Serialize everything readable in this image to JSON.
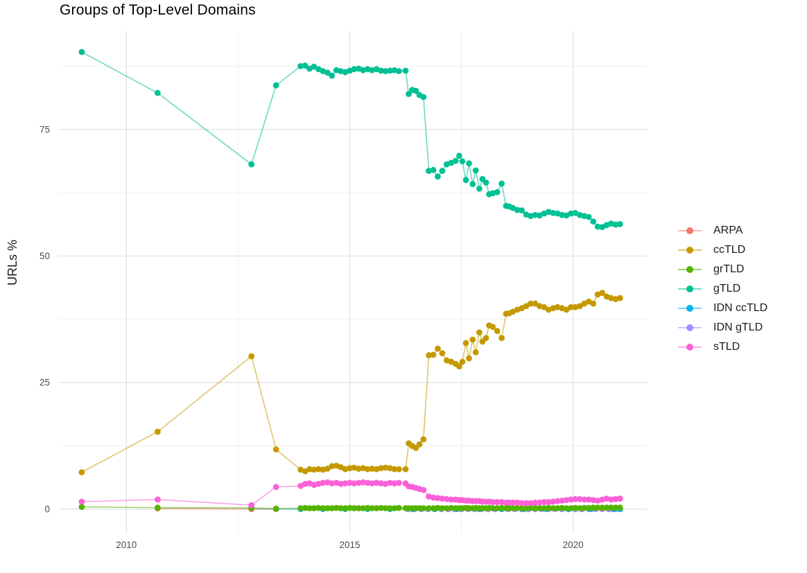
{
  "chart_data": {
    "type": "line",
    "title": "Groups of Top-Level Domains",
    "x_axis": {
      "label": "",
      "ticks": [
        "2010",
        "2015",
        "2020"
      ],
      "tick_values": [
        2010,
        2015,
        2020
      ],
      "minor_tick_values": [
        2012.5,
        2017.5
      ],
      "domain": [
        2008.49,
        2021.65
      ]
    },
    "y_axis": {
      "label": "URLs %",
      "ticks": [
        "0",
        "25",
        "50",
        "75"
      ],
      "tick_values": [
        0,
        25,
        50,
        75
      ],
      "minor_tick_values": [
        12.5,
        37.5,
        62.5,
        87.5
      ],
      "domain": [
        -4.8,
        94.4
      ]
    },
    "grid": true,
    "grid_color_major": "#e3e3e3",
    "grid_color_minor": "#f0f0f0",
    "tick_text_color": "#4d4d4d",
    "legend": {
      "position": "right"
    },
    "shared_x": [
      2009.0,
      2010.7,
      2012.8,
      2013.35,
      2013.9,
      2014.0,
      2014.1,
      2014.2,
      2014.3,
      2014.4,
      2014.5,
      2014.6,
      2014.7,
      2014.8,
      2014.9,
      2015.0,
      2015.1,
      2015.2,
      2015.3,
      2015.4,
      2015.5,
      2015.6,
      2015.7,
      2015.8,
      2015.9,
      2016.0,
      2016.1,
      2016.25,
      2016.32,
      2016.4,
      2016.48,
      2016.56,
      2016.65,
      2016.77,
      2016.87,
      2016.97,
      2017.07,
      2017.17,
      2017.27,
      2017.37,
      2017.45,
      2017.52,
      2017.6,
      2017.67,
      2017.75,
      2017.82,
      2017.9,
      2017.97,
      2018.05,
      2018.12,
      2018.2,
      2018.3,
      2018.4,
      2018.5,
      2018.57,
      2018.65,
      2018.75,
      2018.85,
      2018.95,
      2019.05,
      2019.15,
      2019.25,
      2019.35,
      2019.45,
      2019.55,
      2019.65,
      2019.75,
      2019.85,
      2019.95,
      2020.05,
      2020.15,
      2020.25,
      2020.35,
      2020.45,
      2020.55,
      2020.65,
      2020.75,
      2020.85,
      2020.95,
      2021.05
    ],
    "series": [
      {
        "name": "ARPA",
        "color": "#F8766D",
        "x": [
          2010.7,
          2012.8,
          2013.35
        ],
        "y": [
          0.15,
          0.05,
          0.05
        ]
      },
      {
        "name": "ccTLD",
        "color": "#C49A00",
        "x": "shared",
        "y": [
          7.3,
          15.3,
          30.2,
          11.8,
          7.8,
          7.5,
          7.9,
          7.8,
          7.9,
          7.8,
          8.0,
          8.5,
          8.6,
          8.3,
          7.9,
          8.1,
          8.2,
          8.0,
          8.1,
          7.9,
          8.0,
          7.9,
          8.1,
          8.2,
          8.1,
          7.9,
          7.9,
          7.9,
          13.0,
          12.5,
          12.1,
          12.8,
          13.8,
          30.4,
          30.5,
          31.7,
          30.8,
          29.4,
          29.1,
          28.7,
          28.2,
          29.1,
          32.8,
          29.8,
          33.5,
          31.0,
          34.9,
          33.1,
          33.8,
          36.3,
          36.0,
          35.2,
          33.8,
          38.6,
          38.7,
          39.0,
          39.4,
          39.7,
          40.1,
          40.6,
          40.6,
          40.1,
          39.9,
          39.4,
          39.7,
          39.9,
          39.7,
          39.4,
          39.9,
          39.9,
          40.1,
          40.6,
          41.0,
          40.6,
          42.4,
          42.7,
          42.0,
          41.7,
          41.5,
          41.7
        ]
      },
      {
        "name": "grTLD",
        "color": "#53B400",
        "x": "shared",
        "y": [
          0.45,
          0.3,
          0.25,
          0.1,
          0.2,
          0.25,
          0.2,
          0.2,
          0.25,
          0.2,
          0.2,
          0.2,
          0.25,
          0.2,
          0.2,
          0.25,
          0.2,
          0.2,
          0.2,
          0.25,
          0.2,
          0.2,
          0.25,
          0.2,
          0.2,
          0.2,
          0.25,
          0.2,
          0.2,
          0.2,
          0.2,
          0.2,
          0.2,
          0.2,
          0.2,
          0.25,
          0.2,
          0.2,
          0.25,
          0.2,
          0.2,
          0.2,
          0.25,
          0.2,
          0.2,
          0.25,
          0.2,
          0.2,
          0.2,
          0.25,
          0.2,
          0.2,
          0.25,
          0.2,
          0.2,
          0.2,
          0.25,
          0.2,
          0.2,
          0.25,
          0.2,
          0.2,
          0.2,
          0.25,
          0.2,
          0.2,
          0.25,
          0.2,
          0.2,
          0.25,
          0.2,
          0.25,
          0.25,
          0.3,
          0.3,
          0.3,
          0.3,
          0.3,
          0.3,
          0.3
        ]
      },
      {
        "name": "gTLD",
        "color": "#00C094",
        "x": "shared",
        "y": [
          90.3,
          82.2,
          68.1,
          83.7,
          87.5,
          87.6,
          87.0,
          87.4,
          86.9,
          86.5,
          86.2,
          85.6,
          86.7,
          86.5,
          86.3,
          86.6,
          86.9,
          87.0,
          86.7,
          86.9,
          86.7,
          86.9,
          86.6,
          86.5,
          86.6,
          86.7,
          86.5,
          86.6,
          82.0,
          82.8,
          82.6,
          81.8,
          81.4,
          66.8,
          67.0,
          65.7,
          66.8,
          68.1,
          68.4,
          68.8,
          69.8,
          68.7,
          65.0,
          68.3,
          64.2,
          66.9,
          63.3,
          65.2,
          64.5,
          62.2,
          62.4,
          62.6,
          64.3,
          59.9,
          59.8,
          59.5,
          59.1,
          59.0,
          58.2,
          57.9,
          58.1,
          58.0,
          58.4,
          58.7,
          58.5,
          58.4,
          58.1,
          58.0,
          58.4,
          58.5,
          58.1,
          57.9,
          57.7,
          56.8,
          55.8,
          55.7,
          56.1,
          56.4,
          56.2,
          56.3
        ]
      },
      {
        "name": "IDN ccTLD",
        "color": "#00B6EB",
        "x": [
          2012.8,
          2013.35,
          2013.9,
          2014.4,
          2014.9,
          2015.4,
          2015.9,
          2016.4,
          2016.9,
          2017.4,
          2017.9,
          2018.4,
          2018.9,
          2019.4,
          2019.9,
          2020.4,
          2020.9,
          2021.05
        ],
        "y": [
          0.05,
          0.05,
          0.05,
          0.05,
          0.05,
          0.05,
          0.05,
          0.05,
          0.05,
          0.05,
          0.05,
          0.05,
          0.05,
          0.05,
          0.05,
          0.05,
          0.05,
          0.05
        ]
      },
      {
        "name": "IDN gTLD",
        "color": "#A58AFF",
        "x": [
          2016.3,
          2016.45,
          2016.6,
          2016.75,
          2016.9,
          2017.05,
          2017.2,
          2017.35,
          2017.5,
          2017.65,
          2017.8,
          2017.95,
          2018.1,
          2018.25,
          2018.4,
          2018.55,
          2018.7,
          2018.85,
          2019.0,
          2019.15,
          2019.3,
          2019.45,
          2019.6,
          2019.75,
          2019.9,
          2020.05,
          2020.2,
          2020.35,
          2020.5,
          2020.65,
          2020.8,
          2020.95,
          2021.05
        ],
        "y": [
          0.0,
          0.0,
          0.0,
          0.0,
          0.0,
          0.0,
          0.0,
          0.0,
          0.0,
          0.0,
          0.0,
          0.0,
          0.0,
          0.0,
          0.0,
          0.0,
          0.0,
          0.0,
          0.0,
          0.0,
          0.0,
          0.0,
          0.0,
          0.0,
          0.0,
          0.0,
          0.0,
          0.0,
          0.0,
          0.0,
          0.0,
          0.0,
          0.0
        ]
      },
      {
        "name": "sTLD",
        "color": "#FB61D7",
        "x": "shared",
        "y": [
          1.5,
          1.9,
          0.8,
          4.4,
          4.6,
          5.0,
          5.1,
          4.8,
          5.0,
          5.2,
          5.3,
          5.1,
          5.2,
          5.0,
          5.1,
          5.2,
          5.1,
          5.2,
          5.3,
          5.2,
          5.1,
          5.2,
          5.1,
          5.0,
          5.2,
          5.1,
          5.2,
          5.1,
          4.5,
          4.4,
          4.2,
          4.0,
          3.8,
          2.5,
          2.3,
          2.2,
          2.1,
          2.0,
          1.9,
          1.9,
          1.8,
          1.8,
          1.7,
          1.7,
          1.6,
          1.6,
          1.6,
          1.5,
          1.5,
          1.5,
          1.4,
          1.4,
          1.4,
          1.3,
          1.3,
          1.3,
          1.3,
          1.2,
          1.2,
          1.2,
          1.3,
          1.3,
          1.4,
          1.4,
          1.5,
          1.6,
          1.7,
          1.8,
          1.9,
          2.0,
          2.0,
          1.9,
          1.9,
          1.8,
          1.7,
          1.9,
          2.1,
          1.9,
          2.0,
          2.1
        ]
      }
    ]
  }
}
